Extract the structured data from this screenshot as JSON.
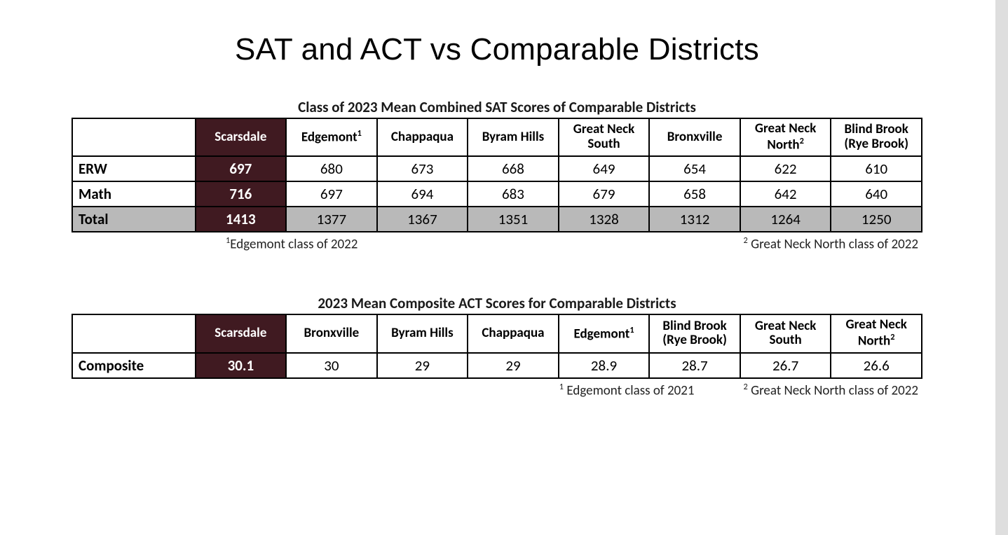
{
  "title": "SAT and ACT vs Comparable Districts",
  "colors": {
    "highlight_bg": "#401a21",
    "highlight_fg": "#ffffff",
    "total_row_bg": "#b9b9b9",
    "border": "#000000",
    "background": "#ffffff"
  },
  "sat_table": {
    "type": "table",
    "caption": "Class of 2023 Mean Combined SAT Scores of Comparable Districts",
    "columns": [
      {
        "label": "",
        "highlight": false
      },
      {
        "label": "Scarsdale",
        "highlight": true
      },
      {
        "label": "Edgemont",
        "sup": "1",
        "highlight": false
      },
      {
        "label": "Chappaqua",
        "highlight": false
      },
      {
        "label": "Byram Hills",
        "highlight": false
      },
      {
        "label": "Great Neck South",
        "highlight": false
      },
      {
        "label": "Bronxville",
        "highlight": false
      },
      {
        "label": "Great Neck North",
        "sup": "2",
        "highlight": false
      },
      {
        "label": "Blind Brook (Rye Brook)",
        "highlight": false
      }
    ],
    "rows": [
      {
        "label": "ERW",
        "cells": [
          "697",
          "680",
          "673",
          "668",
          "649",
          "654",
          "622",
          "610"
        ],
        "total": false
      },
      {
        "label": "Math",
        "cells": [
          "716",
          "697",
          "694",
          "683",
          "679",
          "658",
          "642",
          "640"
        ],
        "total": false
      },
      {
        "label": "Total",
        "cells": [
          "1413",
          "1377",
          "1367",
          "1351",
          "1328",
          "1312",
          "1264",
          "1250"
        ],
        "total": true
      }
    ],
    "footnotes": {
      "left": {
        "sup": "1",
        "text": "Edgemont class of 2022"
      },
      "right": {
        "sup": "2",
        "text": " Great Neck North class of 2022"
      }
    }
  },
  "act_table": {
    "type": "table",
    "caption": "2023 Mean Composite ACT Scores for Comparable Districts",
    "columns": [
      {
        "label": "",
        "highlight": false
      },
      {
        "label": "Scarsdale",
        "highlight": true
      },
      {
        "label": "Bronxville",
        "highlight": false
      },
      {
        "label": "Byram Hills",
        "highlight": false
      },
      {
        "label": "Chappaqua",
        "highlight": false
      },
      {
        "label": "Edgemont",
        "sup": "1",
        "highlight": false
      },
      {
        "label": "Blind Brook (Rye Brook)",
        "highlight": false
      },
      {
        "label": "Great Neck South",
        "highlight": false
      },
      {
        "label": "Great Neck North",
        "sup": "2",
        "highlight": false
      }
    ],
    "rows": [
      {
        "label": "Composite",
        "cells": [
          "30.1",
          "30",
          "29",
          "29",
          "28.9",
          "28.7",
          "26.7",
          "26.6"
        ],
        "total": false
      }
    ],
    "footnotes": [
      {
        "sup": "1",
        "text": " Edgemont class of 2021"
      },
      {
        "sup": "2",
        "text": " Great Neck North class of 2022"
      }
    ]
  }
}
